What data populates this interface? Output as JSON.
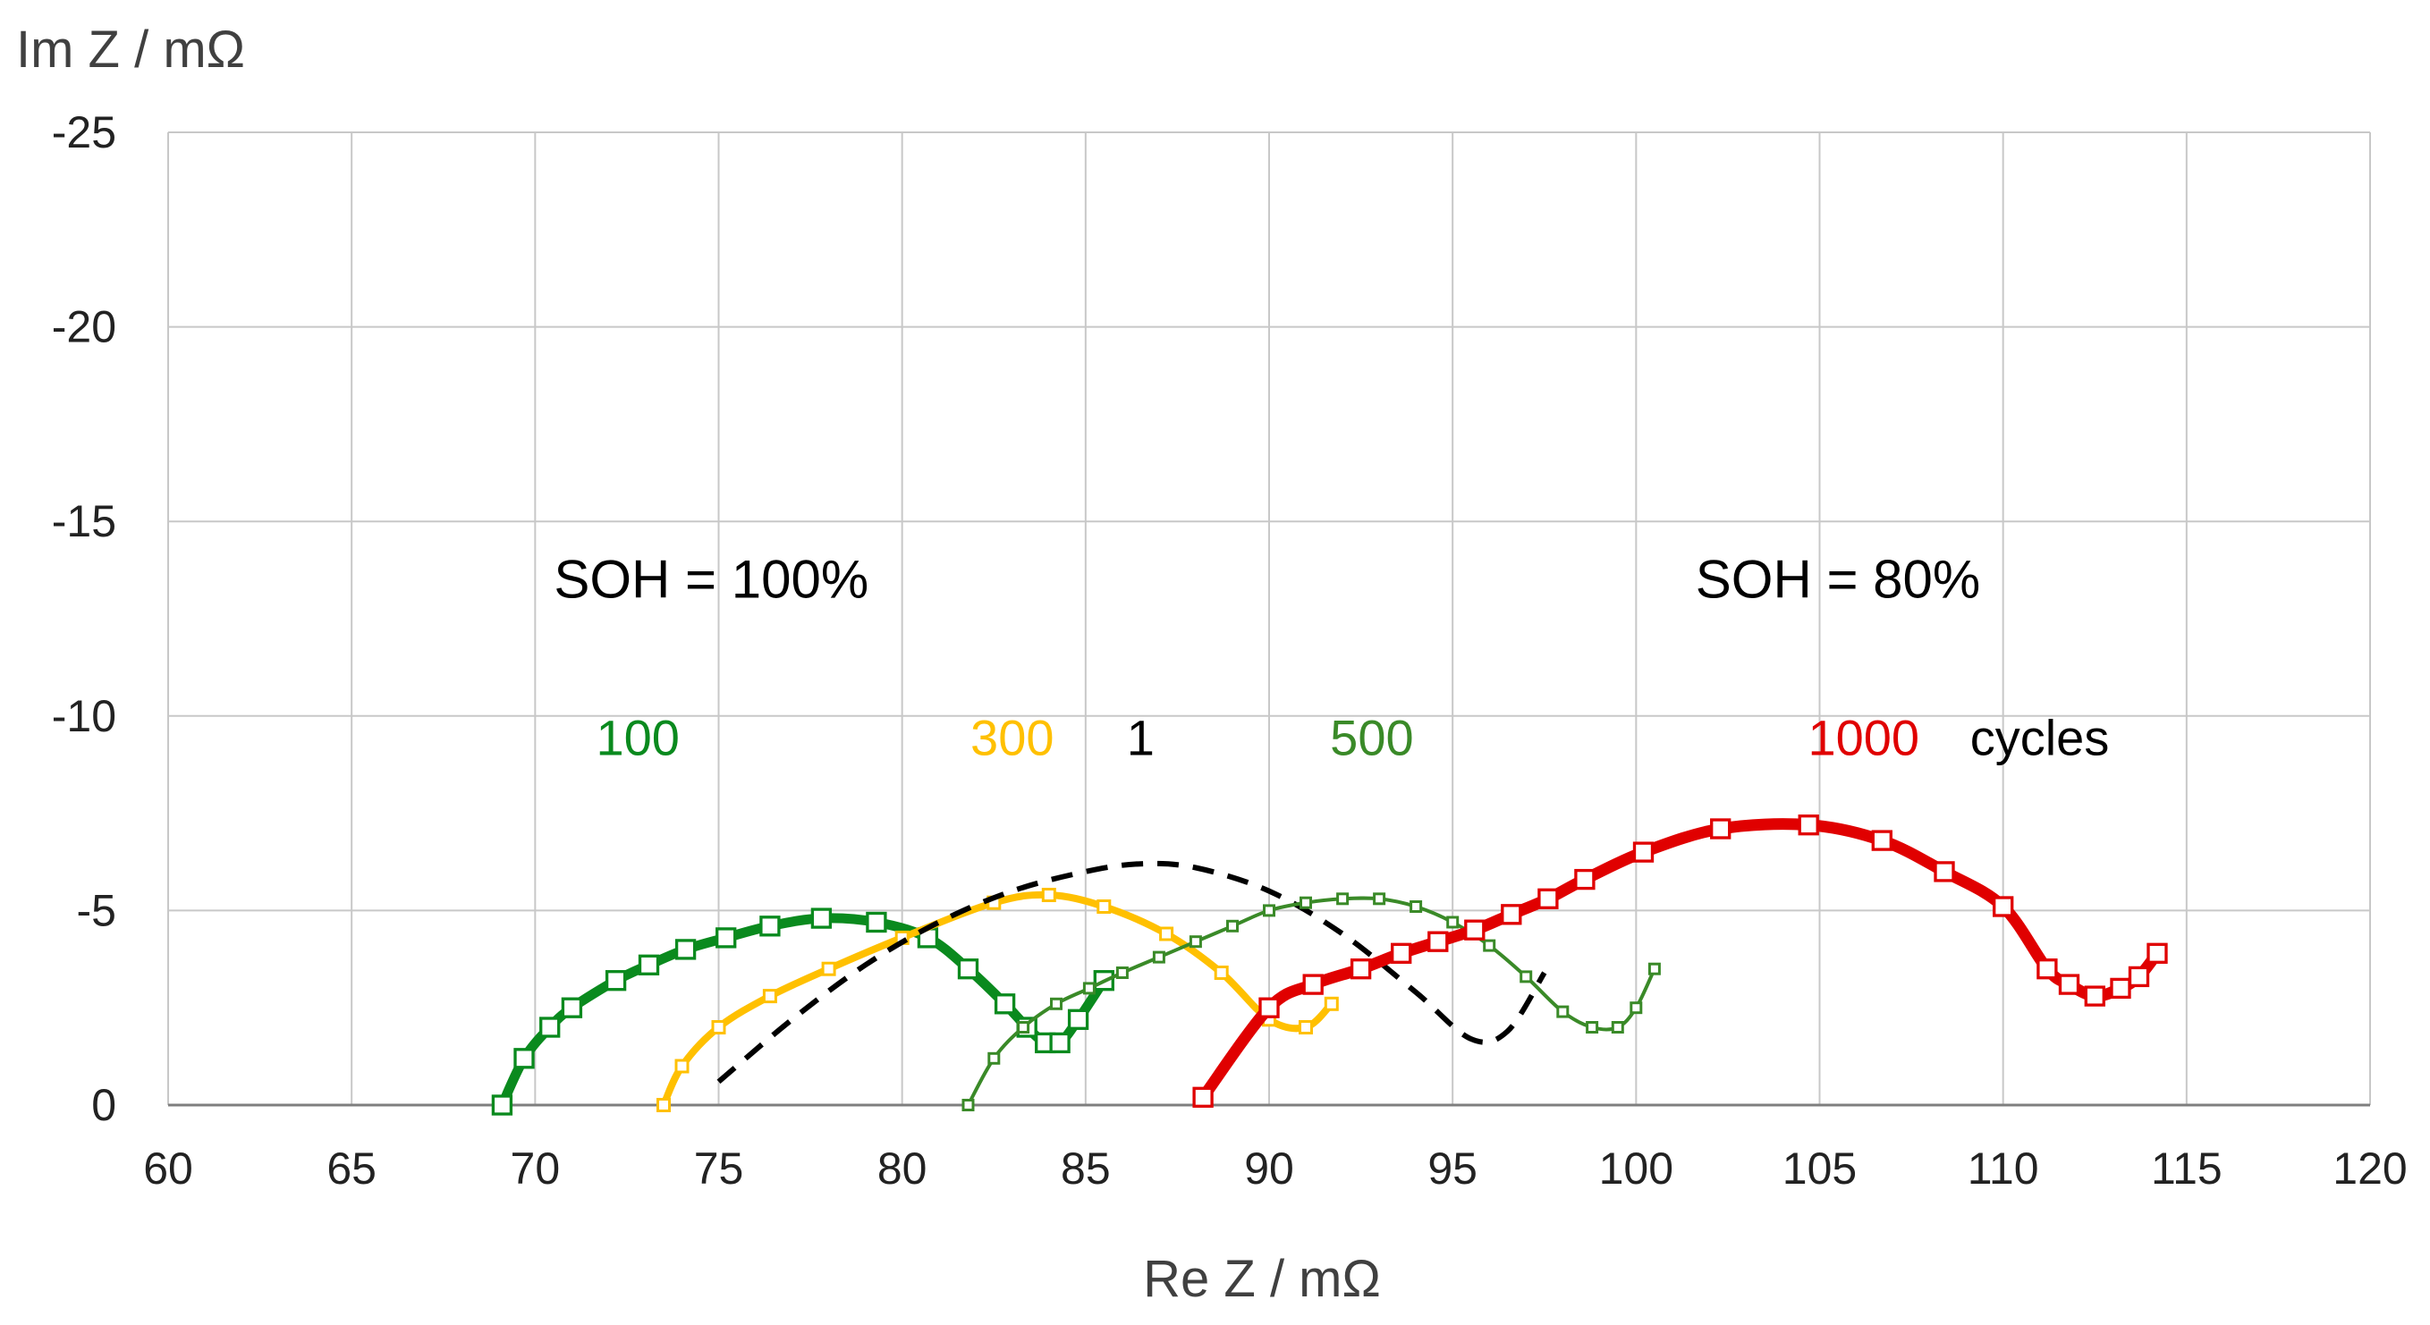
{
  "chart_data": {
    "type": "scatter",
    "title": "",
    "xlabel": "Re Z / mΩ",
    "ylabel": "Im Z / mΩ",
    "xlim": [
      60,
      120
    ],
    "ylim": [
      0,
      -25
    ],
    "x_ticks": [
      "60",
      "65",
      "70",
      "75",
      "80",
      "85",
      "90",
      "95",
      "100",
      "105",
      "110",
      "115",
      "120"
    ],
    "y_ticks": [
      "-25",
      "-20",
      "-15",
      "-10",
      "-5",
      "0"
    ],
    "grid": true,
    "legend": "none",
    "annotations": [
      {
        "text": "SOH = 100%",
        "x": 74.8,
        "y": -13.5
      },
      {
        "text": "SOH = 80%",
        "x": 105.5,
        "y": -13.5
      }
    ],
    "label_suffix": "cycles",
    "series": [
      {
        "name": "100",
        "color": "#0a8a1e",
        "line_width": 11,
        "marker": "square",
        "marker_size": 20,
        "x": [
          69.1,
          69.7,
          70.4,
          71.0,
          72.2,
          73.1,
          74.1,
          75.2,
          76.4,
          77.8,
          79.3,
          80.7,
          81.8,
          82.8,
          83.4,
          83.9,
          84.3,
          84.8,
          85.5
        ],
        "y": [
          0.0,
          -1.2,
          -2.0,
          -2.5,
          -3.2,
          -3.6,
          -4.0,
          -4.3,
          -4.6,
          -4.8,
          -4.7,
          -4.3,
          -3.5,
          -2.6,
          -2.0,
          -1.6,
          -1.6,
          -2.2,
          -3.2
        ]
      },
      {
        "name": "300",
        "color": "#ffc000",
        "line_width": 8,
        "marker": "square",
        "marker_size": 13,
        "x": [
          73.5,
          74.0,
          75.0,
          76.4,
          78.0,
          80.0,
          82.5,
          84.0,
          85.5,
          87.2,
          88.7,
          90.0,
          91.0,
          91.7
        ],
        "y": [
          0.0,
          -1.0,
          -2.0,
          -2.8,
          -3.5,
          -4.3,
          -5.2,
          -5.4,
          -5.1,
          -4.4,
          -3.4,
          -2.2,
          -2.0,
          -2.6
        ]
      },
      {
        "name": "1",
        "color": "#000000",
        "line_width": 6,
        "dashed": true,
        "marker": "none",
        "x": [
          75.0,
          77.0,
          79.0,
          81.0,
          83.0,
          85.0,
          86.5,
          88.0,
          90.0,
          92.0,
          94.0,
          95.5,
          96.5,
          97.5
        ],
        "y": [
          -0.6,
          -2.2,
          -3.6,
          -4.7,
          -5.5,
          -6.0,
          -6.2,
          -6.1,
          -5.5,
          -4.4,
          -2.9,
          -1.7,
          -1.9,
          -3.4
        ]
      },
      {
        "name": "500",
        "color": "#3a8a28",
        "line_width": 4,
        "marker": "square",
        "marker_size": 11,
        "x": [
          81.8,
          82.5,
          83.3,
          84.2,
          85.1,
          86.0,
          87.0,
          88.0,
          89.0,
          90.0,
          91.0,
          92.0,
          93.0,
          94.0,
          95.0,
          96.0,
          97.0,
          98.0,
          98.8,
          99.5,
          100.0,
          100.5
        ],
        "y": [
          0.0,
          -1.2,
          -2.0,
          -2.6,
          -3.0,
          -3.4,
          -3.8,
          -4.2,
          -4.6,
          -5.0,
          -5.2,
          -5.3,
          -5.3,
          -5.1,
          -4.7,
          -4.1,
          -3.3,
          -2.4,
          -2.0,
          -2.0,
          -2.5,
          -3.5
        ]
      },
      {
        "name": "1000",
        "color": "#e00000",
        "line_width": 13,
        "marker": "square",
        "marker_size": 20,
        "x": [
          88.2,
          90.0,
          91.2,
          92.5,
          93.6,
          94.6,
          95.6,
          96.6,
          97.6,
          98.6,
          100.2,
          102.3,
          104.7,
          106.7,
          108.4,
          110.0,
          111.2,
          111.8,
          112.5,
          113.2,
          113.7,
          114.2
        ],
        "y": [
          -0.2,
          -2.5,
          -3.1,
          -3.5,
          -3.9,
          -4.2,
          -4.5,
          -4.9,
          -5.3,
          -5.8,
          -6.5,
          -7.1,
          -7.2,
          -6.8,
          -6.0,
          -5.1,
          -3.5,
          -3.1,
          -2.8,
          -3.0,
          -3.3,
          -3.9
        ]
      }
    ]
  }
}
